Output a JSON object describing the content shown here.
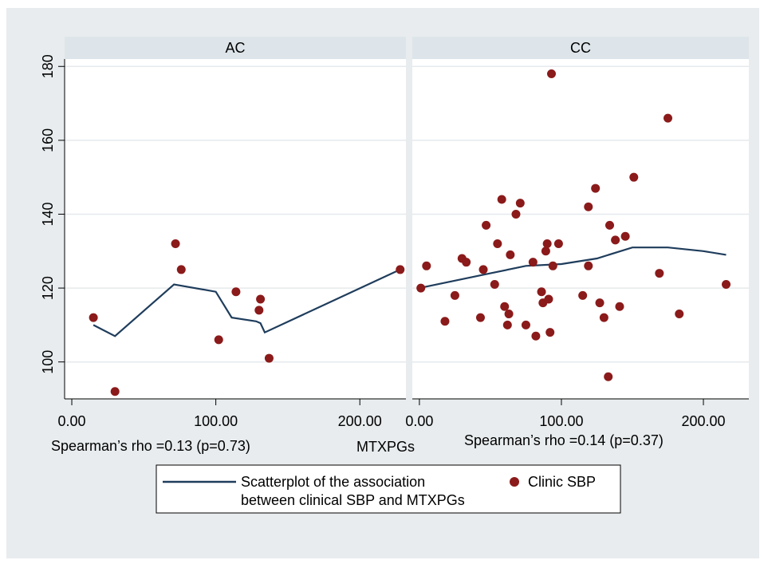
{
  "chart_data": {
    "type": "scatter",
    "xlabel": "MTXPGs",
    "ylim": [
      90,
      182
    ],
    "xlim": [
      -5,
      232
    ],
    "y_ticks": [
      "100",
      "120",
      "140",
      "160",
      "180"
    ],
    "x_ticks": [
      "0.00",
      "100.00",
      "200.00"
    ],
    "colors": {
      "points": "#8b1a1a",
      "fit_line": "#1f3d5c",
      "panel_header": "#dde5ea",
      "background": "#e8ecee"
    },
    "legend": {
      "position": "bottom",
      "line_label_1": "Scatterplot of the association",
      "line_label_2": "between clinical SBP and MTXPGs",
      "point_label": "Clinic SBP"
    },
    "panels": [
      {
        "title": "AC",
        "annotation": "Spearman’s rho =0.13 (p=0.73)",
        "points": [
          [
            15,
            112
          ],
          [
            30,
            92
          ],
          [
            72,
            132
          ],
          [
            76,
            125
          ],
          [
            102,
            106
          ],
          [
            114,
            119
          ],
          [
            130,
            114
          ],
          [
            131,
            117
          ],
          [
            137,
            101
          ],
          [
            228,
            125
          ]
        ],
        "fit_line": [
          [
            15,
            110
          ],
          [
            30,
            107
          ],
          [
            71,
            121
          ],
          [
            100,
            119
          ],
          [
            111,
            112
          ],
          [
            128,
            111
          ],
          [
            131,
            110.5
          ],
          [
            134,
            108
          ],
          [
            228,
            125
          ]
        ]
      },
      {
        "title": "CC",
        "annotation": "Spearman’s rho =0.14 (p=0.37)",
        "points": [
          [
            1,
            120
          ],
          [
            5,
            126
          ],
          [
            18,
            111
          ],
          [
            25,
            118
          ],
          [
            30,
            128
          ],
          [
            33,
            127
          ],
          [
            43,
            112
          ],
          [
            45,
            125
          ],
          [
            47,
            137
          ],
          [
            53,
            121
          ],
          [
            55,
            132
          ],
          [
            58,
            144
          ],
          [
            60,
            115
          ],
          [
            62,
            110
          ],
          [
            63,
            113
          ],
          [
            64,
            129
          ],
          [
            68,
            140
          ],
          [
            71,
            143
          ],
          [
            75,
            110
          ],
          [
            80,
            127
          ],
          [
            82,
            107
          ],
          [
            86,
            119
          ],
          [
            87,
            116
          ],
          [
            89,
            130
          ],
          [
            90,
            132
          ],
          [
            91,
            117
          ],
          [
            92,
            108
          ],
          [
            93,
            178
          ],
          [
            94,
            126
          ],
          [
            98,
            132
          ],
          [
            115,
            118
          ],
          [
            119,
            126
          ],
          [
            119,
            142
          ],
          [
            124,
            147
          ],
          [
            127,
            116
          ],
          [
            130,
            112
          ],
          [
            133,
            96
          ],
          [
            134,
            137
          ],
          [
            138,
            133
          ],
          [
            141,
            115
          ],
          [
            145,
            134
          ],
          [
            151,
            150
          ],
          [
            169,
            124
          ],
          [
            175,
            166
          ],
          [
            183,
            113
          ],
          [
            216,
            121
          ]
        ],
        "fit_line": [
          [
            0,
            120
          ],
          [
            25,
            122
          ],
          [
            50,
            124
          ],
          [
            75,
            126
          ],
          [
            100,
            126.5
          ],
          [
            125,
            128
          ],
          [
            150,
            131
          ],
          [
            175,
            131
          ],
          [
            200,
            130
          ],
          [
            216,
            129
          ]
        ]
      }
    ]
  }
}
